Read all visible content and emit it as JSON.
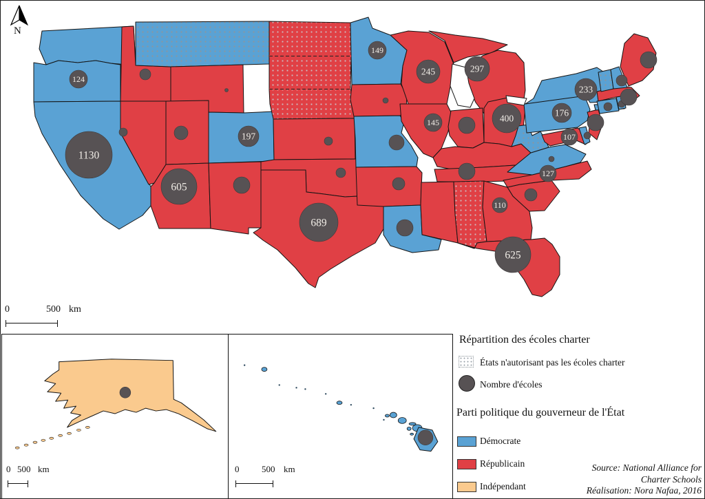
{
  "figure": {
    "north_label": "N",
    "main_scalebar": {
      "zero": "0",
      "distance": "500",
      "unit": "km"
    },
    "legend": {
      "title": "Répartition des écoles charter",
      "no_charter_label": "États n'autorisant pas les écoles charter",
      "circle_size_label": "Nombre d'écoles",
      "party_section_title": "Parti politique du gouverneur de l'État",
      "parties": [
        {
          "id": "democrat",
          "label": "Démocrate"
        },
        {
          "id": "republican",
          "label": "Républicain"
        },
        {
          "id": "independent",
          "label": "Indépendant"
        }
      ]
    },
    "source": [
      "Source: National Alliance for",
      "Charter Schools",
      "Réalisation: Nora Nafaa, 2016"
    ],
    "colors": {
      "democrat": "#5AA2D4",
      "republican": "#E04045",
      "independent": "#FACA8E",
      "circle": "#575254",
      "circle_text": "#F1EDE7",
      "border": "#141414",
      "dot_on_democrat": "#8E959C",
      "dot_on_republican": "#CDB9BD"
    },
    "insets": {
      "alaska": {
        "scalebar": {
          "zero": "0",
          "distance": "500",
          "unit": "km"
        }
      },
      "hawaii": {
        "scalebar": {
          "zero": "0",
          "distance": "500",
          "unit": "km"
        }
      }
    },
    "states": [
      {
        "id": "WA",
        "name": "Washington",
        "party": "democrat",
        "charter_allowed": true,
        "schools": null,
        "circle": false
      },
      {
        "id": "OR",
        "name": "Oregon",
        "party": "democrat",
        "charter_allowed": true,
        "schools": 124,
        "circle": true
      },
      {
        "id": "CA",
        "name": "California",
        "party": "democrat",
        "charter_allowed": true,
        "schools": 1130,
        "circle": true
      },
      {
        "id": "NV",
        "name": "Nevada",
        "party": "republican",
        "charter_allowed": true,
        "schools": null,
        "circle": true
      },
      {
        "id": "ID",
        "name": "Idaho",
        "party": "republican",
        "charter_allowed": true,
        "schools": null,
        "circle": true
      },
      {
        "id": "MT",
        "name": "Montana",
        "party": "democrat",
        "charter_allowed": false,
        "schools": null,
        "circle": false
      },
      {
        "id": "WY",
        "name": "Wyoming",
        "party": "republican",
        "charter_allowed": true,
        "schools": null,
        "circle": true
      },
      {
        "id": "UT",
        "name": "Utah",
        "party": "republican",
        "charter_allowed": true,
        "schools": null,
        "circle": true
      },
      {
        "id": "CO",
        "name": "Colorado",
        "party": "democrat",
        "charter_allowed": true,
        "schools": 197,
        "circle": true
      },
      {
        "id": "AZ",
        "name": "Arizona",
        "party": "republican",
        "charter_allowed": true,
        "schools": 605,
        "circle": true
      },
      {
        "id": "NM",
        "name": "New Mexico",
        "party": "republican",
        "charter_allowed": true,
        "schools": null,
        "circle": true
      },
      {
        "id": "ND",
        "name": "North Dakota",
        "party": "republican",
        "charter_allowed": false,
        "schools": null,
        "circle": false
      },
      {
        "id": "SD",
        "name": "South Dakota",
        "party": "republican",
        "charter_allowed": false,
        "schools": null,
        "circle": false
      },
      {
        "id": "NE",
        "name": "Nebraska",
        "party": "republican",
        "charter_allowed": false,
        "schools": null,
        "circle": false
      },
      {
        "id": "KS",
        "name": "Kansas",
        "party": "republican",
        "charter_allowed": true,
        "schools": null,
        "circle": true
      },
      {
        "id": "OK",
        "name": "Oklahoma",
        "party": "republican",
        "charter_allowed": true,
        "schools": null,
        "circle": true
      },
      {
        "id": "TX",
        "name": "Texas",
        "party": "republican",
        "charter_allowed": true,
        "schools": 689,
        "circle": true
      },
      {
        "id": "MN",
        "name": "Minnesota",
        "party": "democrat",
        "charter_allowed": true,
        "schools": 149,
        "circle": true
      },
      {
        "id": "IA",
        "name": "Iowa",
        "party": "republican",
        "charter_allowed": true,
        "schools": null,
        "circle": true
      },
      {
        "id": "MO",
        "name": "Missouri",
        "party": "democrat",
        "charter_allowed": true,
        "schools": null,
        "circle": true
      },
      {
        "id": "AR",
        "name": "Arkansas",
        "party": "republican",
        "charter_allowed": true,
        "schools": null,
        "circle": true
      },
      {
        "id": "LA",
        "name": "Louisiana",
        "party": "democrat",
        "charter_allowed": true,
        "schools": null,
        "circle": true
      },
      {
        "id": "WI",
        "name": "Wisconsin",
        "party": "republican",
        "charter_allowed": true,
        "schools": 245,
        "circle": true
      },
      {
        "id": "MI",
        "name": "Michigan",
        "party": "republican",
        "charter_allowed": true,
        "schools": 297,
        "circle": true
      },
      {
        "id": "IL",
        "name": "Illinois",
        "party": "republican",
        "charter_allowed": true,
        "schools": 145,
        "circle": true
      },
      {
        "id": "IN",
        "name": "Indiana",
        "party": "republican",
        "charter_allowed": true,
        "schools": null,
        "circle": true
      },
      {
        "id": "OH",
        "name": "Ohio",
        "party": "republican",
        "charter_allowed": true,
        "schools": 400,
        "circle": true
      },
      {
        "id": "KY",
        "name": "Kentucky",
        "party": "republican",
        "charter_allowed": true,
        "schools": null,
        "circle": false
      },
      {
        "id": "TN",
        "name": "Tennessee",
        "party": "republican",
        "charter_allowed": true,
        "schools": null,
        "circle": true
      },
      {
        "id": "MS",
        "name": "Mississippi",
        "party": "republican",
        "charter_allowed": true,
        "schools": null,
        "circle": false
      },
      {
        "id": "AL",
        "name": "Alabama",
        "party": "republican",
        "charter_allowed": false,
        "schools": null,
        "circle": false
      },
      {
        "id": "GA",
        "name": "Georgia",
        "party": "republican",
        "charter_allowed": true,
        "schools": 110,
        "circle": true
      },
      {
        "id": "FL",
        "name": "Florida",
        "party": "republican",
        "charter_allowed": true,
        "schools": 625,
        "circle": true
      },
      {
        "id": "SC",
        "name": "South Carolina",
        "party": "republican",
        "charter_allowed": true,
        "schools": null,
        "circle": true
      },
      {
        "id": "NC",
        "name": "North Carolina",
        "party": "republican",
        "charter_allowed": true,
        "schools": 127,
        "circle": true
      },
      {
        "id": "VA",
        "name": "Virginia",
        "party": "democrat",
        "charter_allowed": true,
        "schools": null,
        "circle": true
      },
      {
        "id": "WV",
        "name": "West Virginia",
        "party": "democrat",
        "charter_allowed": false,
        "schools": null,
        "circle": false
      },
      {
        "id": "MD",
        "name": "Maryland",
        "party": "republican",
        "charter_allowed": true,
        "schools": 107,
        "circle": true
      },
      {
        "id": "DE",
        "name": "Delaware",
        "party": "democrat",
        "charter_allowed": true,
        "schools": null,
        "circle": true
      },
      {
        "id": "PA",
        "name": "Pennsylvania",
        "party": "democrat",
        "charter_allowed": true,
        "schools": 176,
        "circle": true
      },
      {
        "id": "NJ",
        "name": "New Jersey",
        "party": "republican",
        "charter_allowed": true,
        "schools": null,
        "circle": true
      },
      {
        "id": "NY",
        "name": "New York",
        "party": "democrat",
        "charter_allowed": true,
        "schools": 233,
        "circle": true
      },
      {
        "id": "CT",
        "name": "Connecticut",
        "party": "democrat",
        "charter_allowed": true,
        "schools": null,
        "circle": true
      },
      {
        "id": "RI",
        "name": "Rhode Island",
        "party": "democrat",
        "charter_allowed": true,
        "schools": null,
        "circle": true
      },
      {
        "id": "MA",
        "name": "Massachusetts",
        "party": "republican",
        "charter_allowed": true,
        "schools": null,
        "circle": true
      },
      {
        "id": "VT",
        "name": "Vermont",
        "party": "democrat",
        "charter_allowed": false,
        "schools": null,
        "circle": false
      },
      {
        "id": "NH",
        "name": "New Hampshire",
        "party": "democrat",
        "charter_allowed": true,
        "schools": null,
        "circle": true
      },
      {
        "id": "ME",
        "name": "Maine",
        "party": "republican",
        "charter_allowed": true,
        "schools": null,
        "circle": true
      },
      {
        "id": "AK",
        "name": "Alaska",
        "party": "independent",
        "charter_allowed": true,
        "schools": null,
        "circle": true,
        "inset": "alaska"
      },
      {
        "id": "HI",
        "name": "Hawaii",
        "party": "democrat",
        "charter_allowed": true,
        "schools": null,
        "circle": true,
        "inset": "hawaii"
      }
    ]
  }
}
